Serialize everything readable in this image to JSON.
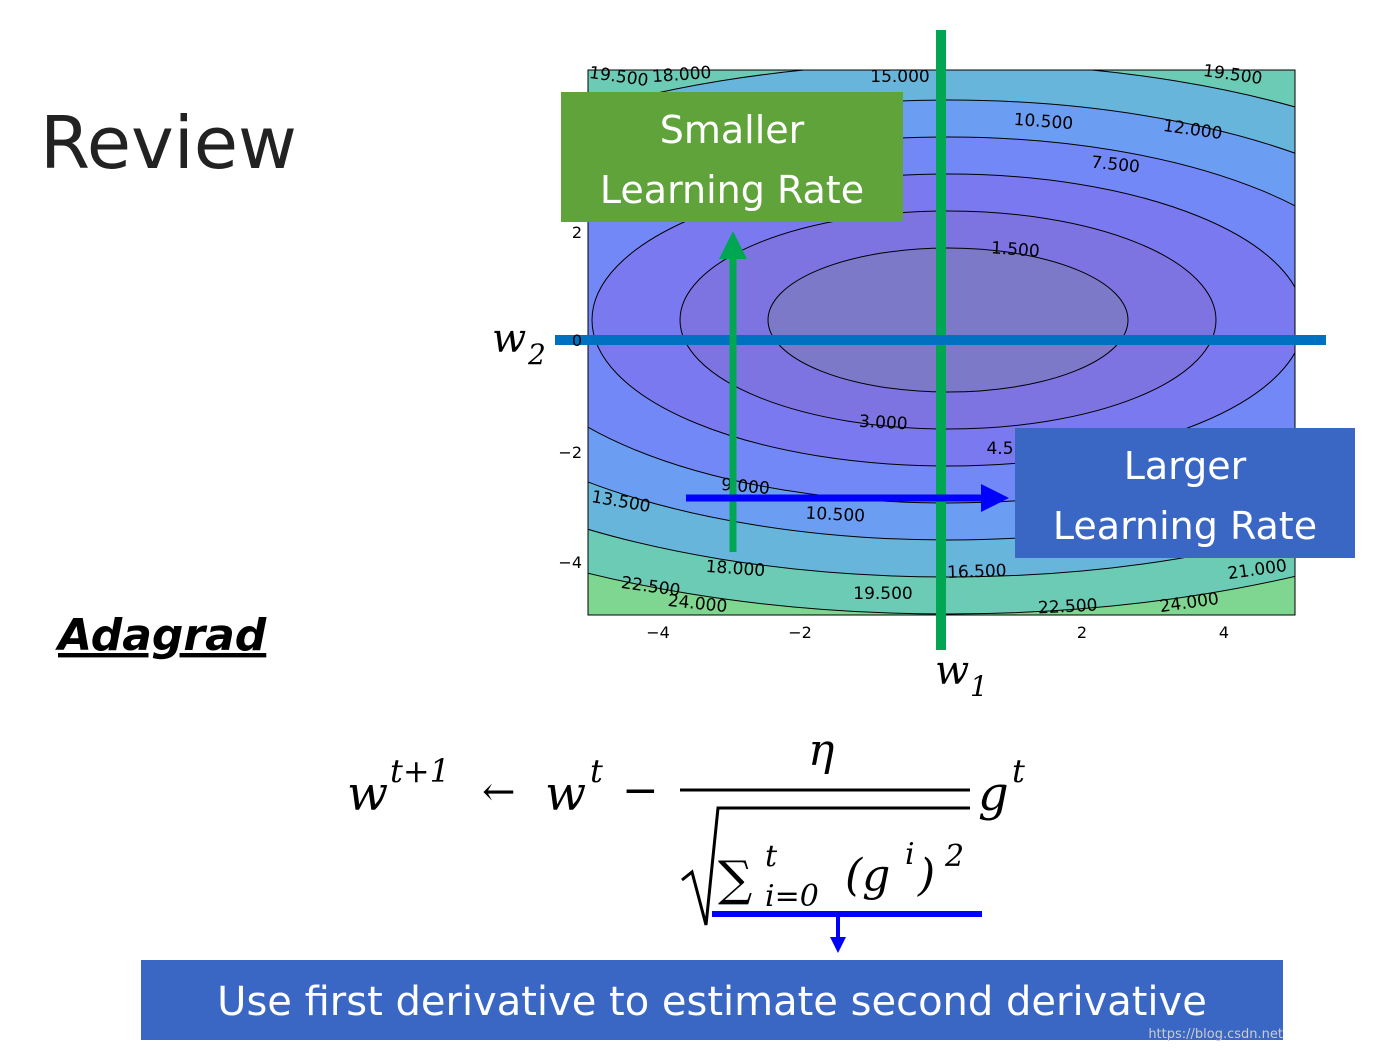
{
  "title": "Review",
  "section": "Adagrad",
  "plot": {
    "xticks": [
      "−4",
      "−2",
      "2",
      "4"
    ],
    "yticks": [
      "2",
      "0",
      "−2",
      "−4"
    ],
    "contour_labels": [
      "19.500",
      "18.000",
      "15.000",
      "10.500",
      "12.000",
      "7.500",
      "19.500",
      "1.500",
      "3.000",
      "4.5",
      "9.000",
      "13.500",
      "10.500",
      "18.000",
      "16.500",
      "22.500",
      "24.000",
      "19.500",
      "21.000",
      "22.500",
      "24.000"
    ],
    "x_axis_label": "w",
    "x_axis_sub": "1",
    "y_axis_label": "w",
    "y_axis_sub": "2"
  },
  "callouts": {
    "smaller": [
      "Smaller",
      "Learning Rate"
    ],
    "larger": [
      "Larger",
      "Learning Rate"
    ]
  },
  "formula": {
    "w_next": "w",
    "next_sup": "t+1",
    "arrow": "←",
    "w_cur": "w",
    "cur_sup": "t",
    "minus": "−",
    "eta": "η",
    "g": "g",
    "g_sup": "t",
    "sum": "∑",
    "sum_sup": "t",
    "sum_sub": "i=0",
    "paren_open": "(g",
    "gi_sup": "i",
    "paren_close": ")",
    "sq": "2"
  },
  "banner": "Use first derivative to estimate second derivative",
  "watermark": "https://blog.csdn.net"
}
